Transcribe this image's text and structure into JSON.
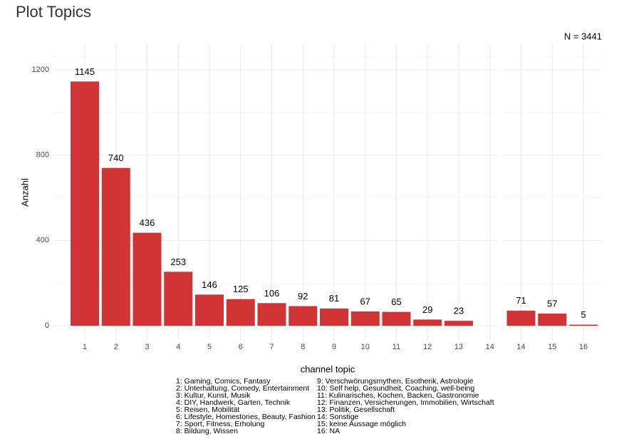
{
  "chart_data": {
    "type": "bar",
    "title": "Plot Topics",
    "annotation": "N = 3441",
    "x_label": "channel topic",
    "y_label": "Anzahl",
    "categories": [
      "1",
      "2",
      "3",
      "4",
      "5",
      "6",
      "7",
      "8",
      "9",
      "10",
      "11",
      "12",
      "13",
      "14",
      "14",
      "15",
      "16"
    ],
    "values": [
      1145,
      740,
      436,
      253,
      146,
      125,
      106,
      92,
      81,
      67,
      65,
      29,
      23,
      null,
      71,
      57,
      5
    ],
    "color": "#d03434",
    "ylim": [
      -70,
      1320
    ],
    "yticks": [
      0,
      400,
      800,
      1200
    ],
    "grid": true,
    "legend_notes": [
      [
        "1: Gaming, Comics, Fantasy",
        "2: Unterhaltung, Comedy, Entertainment",
        "3: Kultur, Kunst, Musik",
        "4: DIY, Handwerk, Garten, Technik",
        "5: Reisen, Mobilität",
        "6: Lifestyle, Homestories, Beauty, Fashion",
        "7: Sport, Fitness, Erholung",
        "8: Bildung, Wissen"
      ],
      [
        "9: Verschwörungsmythen, Esotherik, Astrologie",
        "10: Self help, Gesundheit, Coaching, well-being",
        "11: Kulinarisches, Kochen, Backen, Gastronomie",
        "12: Finanzen, Versicherungen, Immobilien, Wirtschaft",
        "13: Politik, Gesellschaft",
        "14: Sonstige",
        "15: keine Aussage möglich",
        "16: NA"
      ]
    ]
  }
}
